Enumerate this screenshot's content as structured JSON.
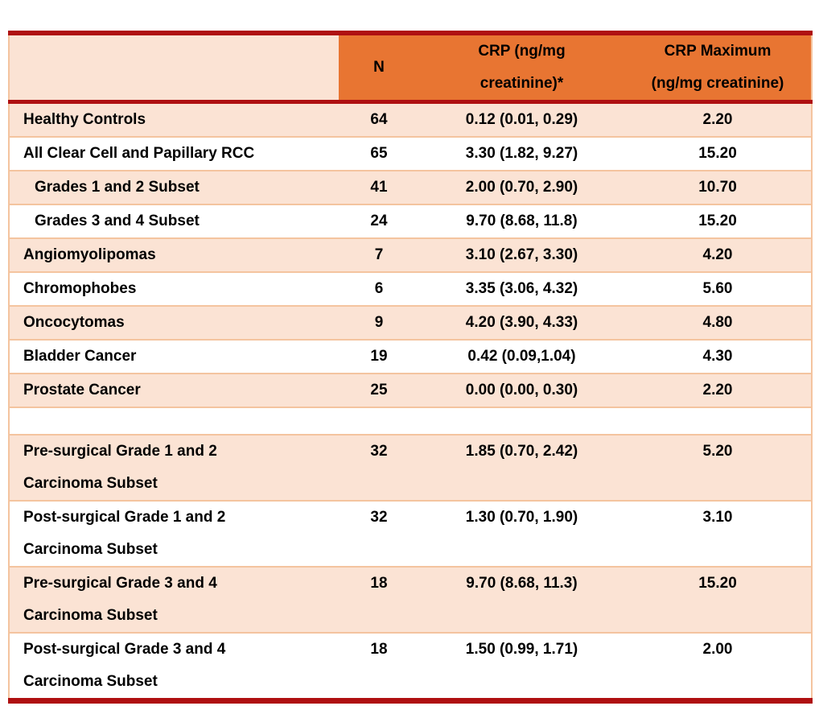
{
  "colors": {
    "accent_dark_red": "#AF1011",
    "header_orange": "#E87532",
    "row_peach": "#FBE3D4",
    "gridline_peach": "#F4C49F"
  },
  "table": {
    "header": {
      "label": "",
      "n": "N",
      "crp_lines": [
        "CRP (ng/mg",
        "creatinine)*"
      ],
      "crp_max_lines": [
        "CRP Maximum",
        "(ng/mg creatinine)"
      ]
    },
    "rows": [
      {
        "label_lines": [
          "Healthy Controls"
        ],
        "n": "64",
        "crp": "0.12 (0.01, 0.29)",
        "crp_max": "2.20"
      },
      {
        "label_lines": [
          "All Clear Cell and Papillary RCC"
        ],
        "n": "65",
        "crp": "3.30 (1.82, 9.27)",
        "crp_max": "15.20"
      },
      {
        "label_lines": [
          "Grades 1 and 2 Subset"
        ],
        "n": "41",
        "crp": "2.00 (0.70, 2.90)",
        "crp_max": "10.70"
      },
      {
        "label_lines": [
          "Grades 3 and 4 Subset"
        ],
        "n": "24",
        "crp": "9.70 (8.68, 11.8)",
        "crp_max": "15.20"
      },
      {
        "label_lines": [
          "Angiomyolipomas"
        ],
        "n": "7",
        "crp": "3.10 (2.67, 3.30)",
        "crp_max": "4.20"
      },
      {
        "label_lines": [
          "Chromophobes"
        ],
        "n": "6",
        "crp": "3.35 (3.06, 4.32)",
        "crp_max": "5.60"
      },
      {
        "label_lines": [
          "Oncocytomas"
        ],
        "n": "9",
        "crp": "4.20 (3.90, 4.33)",
        "crp_max": "4.80"
      },
      {
        "label_lines": [
          "Bladder Cancer"
        ],
        "n": "19",
        "crp": "0.42 (0.09,1.04)",
        "crp_max": "4.30"
      },
      {
        "label_lines": [
          "Prostate Cancer"
        ],
        "n": "25",
        "crp": "0.00 (0.00, 0.30)",
        "crp_max": "2.20"
      },
      {
        "label_lines": [],
        "n": "",
        "crp": "",
        "crp_max": ""
      },
      {
        "label_lines": [
          "Pre-surgical Grade 1 and 2",
          "Carcinoma Subset"
        ],
        "n": "32",
        "crp": "1.85 (0.70, 2.42)",
        "crp_max": "5.20"
      },
      {
        "label_lines": [
          "Post-surgical Grade 1 and 2",
          "Carcinoma Subset"
        ],
        "n": "32",
        "crp": "1.30 (0.70, 1.90)",
        "crp_max": "3.10"
      },
      {
        "label_lines": [
          "Pre-surgical Grade 3 and 4",
          "Carcinoma Subset"
        ],
        "n": "18",
        "crp": "9.70 (8.68, 11.3)",
        "crp_max": "15.20"
      },
      {
        "label_lines": [
          "Post-surgical Grade 3 and 4",
          "Carcinoma Subset"
        ],
        "n": "18",
        "crp": "1.50 (0.99, 1.71)",
        "crp_max": "2.00"
      }
    ]
  },
  "chart_data": {
    "type": "table",
    "columns": [
      "",
      "N",
      "CRP (ng/mg creatinine)*",
      "CRP Maximum (ng/mg creatinine)"
    ],
    "rows": [
      [
        "Healthy Controls",
        64,
        "0.12 (0.01, 0.29)",
        2.2
      ],
      [
        "All Clear Cell and Papillary RCC",
        65,
        "3.30 (1.82, 9.27)",
        15.2
      ],
      [
        "Grades 1 and 2 Subset",
        41,
        "2.00 (0.70, 2.90)",
        10.7
      ],
      [
        "Grades 3 and 4 Subset",
        24,
        "9.70 (8.68, 11.8)",
        15.2
      ],
      [
        "Angiomyolipomas",
        7,
        "3.10 (2.67, 3.30)",
        4.2
      ],
      [
        "Chromophobes",
        6,
        "3.35 (3.06, 4.32)",
        5.6
      ],
      [
        "Oncocytomas",
        9,
        "4.20 (3.90, 4.33)",
        4.8
      ],
      [
        "Bladder Cancer",
        19,
        "0.42 (0.09,1.04)",
        4.3
      ],
      [
        "Prostate Cancer",
        25,
        "0.00 (0.00, 0.30)",
        2.2
      ],
      [
        "Pre-surgical Grade 1 and 2 Carcinoma Subset",
        32,
        "1.85 (0.70, 2.42)",
        5.2
      ],
      [
        "Post-surgical Grade 1 and 2 Carcinoma Subset",
        32,
        "1.30 (0.70, 1.90)",
        3.1
      ],
      [
        "Pre-surgical Grade 3 and 4 Carcinoma Subset",
        18,
        "9.70 (8.68, 11.3)",
        15.2
      ],
      [
        "Post-surgical Grade 3 and 4 Carcinoma Subset",
        18,
        "1.50 (0.99, 1.71)",
        2.0
      ]
    ]
  }
}
